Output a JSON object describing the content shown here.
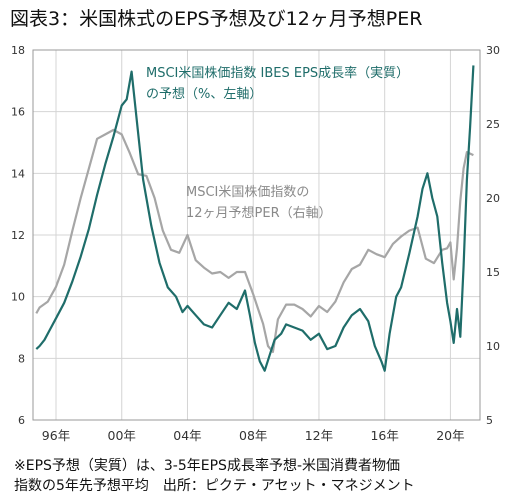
{
  "title": "図表3：米国株式のEPS予想及び12ヶ月予想PER",
  "footnote": {
    "line1": "※EPS予想（実質）は、3-5年EPS成長率予想-米国消費者物価",
    "line2": "指数の5年先予想平均　出所：ピクテ・アセット・マネジメント"
  },
  "colors": {
    "eps_series": "#1f6d6a",
    "per_series": "#a6a6a6",
    "grid": "#d4d4d4",
    "frame": "#9a9a9a"
  },
  "chart_data": {
    "type": "line",
    "title": "",
    "xlabel": "",
    "ylabel": "",
    "ylim": [
      6,
      18
    ],
    "y2lim": [
      5,
      30
    ],
    "yticks": [
      6,
      8,
      10,
      12,
      14,
      16,
      18
    ],
    "y2ticks": [
      5,
      10,
      15,
      20,
      25,
      30
    ],
    "xlim": [
      1994.6,
      2021.8
    ],
    "xticks": [
      1996,
      2000,
      2004,
      2008,
      2012,
      2016,
      2020
    ],
    "xtick_labels": [
      "96年",
      "00年",
      "04年",
      "08年",
      "12年",
      "16年",
      "20年"
    ],
    "grid": true,
    "annotations": [
      {
        "series": "eps",
        "lines": [
          "MSCI米国株価指数 IBES EPS成長率（実質）",
          "の予想（%、左軸）"
        ]
      },
      {
        "series": "per",
        "lines": [
          "MSCI米国株価指数の",
          "12ヶ月予想PER（右軸）"
        ]
      }
    ],
    "series": [
      {
        "id": "eps",
        "axis": "left",
        "x": [
          1994.8,
          1995.0,
          1995.3,
          1995.6,
          1996.0,
          1996.5,
          1997.0,
          1997.5,
          1998.0,
          1998.5,
          1999.0,
          1999.5,
          2000.0,
          2000.3,
          2000.6,
          2000.9,
          2001.3,
          2001.8,
          2002.3,
          2002.8,
          2003.3,
          2003.7,
          2004.0,
          2004.5,
          2005.0,
          2005.5,
          2006.0,
          2006.5,
          2007.0,
          2007.5,
          2007.8,
          2008.1,
          2008.4,
          2008.7,
          2009.0,
          2009.3,
          2009.7,
          2010.0,
          2010.5,
          2011.0,
          2011.5,
          2012.0,
          2012.5,
          2013.0,
          2013.5,
          2014.0,
          2014.5,
          2015.0,
          2015.4,
          2015.8,
          2016.0,
          2016.3,
          2016.7,
          2017.0,
          2017.5,
          2018.0,
          2018.3,
          2018.6,
          2018.9,
          2019.2,
          2019.5,
          2019.8,
          2020.0,
          2020.2,
          2020.4,
          2020.6,
          2020.8,
          2021.0,
          2021.2,
          2021.4
        ],
        "y": [
          8.3,
          8.4,
          8.6,
          8.9,
          9.3,
          9.8,
          10.5,
          11.3,
          12.2,
          13.3,
          14.3,
          15.2,
          16.2,
          16.4,
          17.3,
          15.8,
          13.8,
          12.3,
          11.1,
          10.3,
          10.0,
          9.5,
          9.7,
          9.4,
          9.1,
          9.0,
          9.4,
          9.8,
          9.6,
          10.2,
          9.4,
          8.5,
          7.9,
          7.6,
          8.1,
          8.6,
          8.8,
          9.1,
          9.0,
          8.9,
          8.6,
          8.8,
          8.3,
          8.4,
          9.0,
          9.4,
          9.6,
          9.2,
          8.4,
          7.9,
          7.6,
          8.8,
          10.0,
          10.3,
          11.4,
          12.6,
          13.5,
          14.0,
          13.2,
          12.6,
          11.1,
          9.8,
          9.2,
          8.5,
          9.6,
          8.7,
          11.0,
          13.8,
          15.5,
          17.5
        ]
      },
      {
        "id": "per",
        "axis": "right",
        "x": [
          1994.8,
          1995.0,
          1995.5,
          1996.0,
          1996.5,
          1997.0,
          1997.5,
          1998.0,
          1998.5,
          1999.0,
          1999.5,
          2000.0,
          2000.5,
          2001.0,
          2001.5,
          2002.0,
          2002.5,
          2003.0,
          2003.5,
          2004.0,
          2004.5,
          2005.0,
          2005.5,
          2006.0,
          2006.5,
          2007.0,
          2007.5,
          2008.0,
          2008.3,
          2008.6,
          2008.9,
          2009.2,
          2009.5,
          2010.0,
          2010.5,
          2011.0,
          2011.5,
          2012.0,
          2012.5,
          2013.0,
          2013.5,
          2014.0,
          2014.5,
          2015.0,
          2015.5,
          2016.0,
          2016.5,
          2017.0,
          2017.5,
          2018.0,
          2018.5,
          2019.0,
          2019.5,
          2019.8,
          2020.0,
          2020.2,
          2020.4,
          2020.6,
          2020.8,
          2021.0,
          2021.4
        ],
        "y": [
          12.2,
          12.6,
          13.0,
          14.0,
          15.5,
          17.8,
          20.0,
          22.0,
          24.0,
          24.3,
          24.6,
          24.3,
          23.0,
          21.6,
          21.5,
          20.0,
          17.8,
          16.5,
          16.3,
          17.5,
          15.8,
          15.3,
          14.9,
          15.0,
          14.6,
          15.0,
          15.0,
          13.5,
          12.5,
          11.5,
          10.0,
          9.6,
          11.8,
          12.8,
          12.8,
          12.5,
          12.0,
          12.7,
          12.3,
          13.0,
          14.3,
          15.2,
          15.5,
          16.5,
          16.2,
          16.0,
          16.9,
          17.4,
          17.8,
          18.0,
          15.9,
          15.6,
          16.5,
          16.6,
          17.0,
          14.5,
          16.6,
          19.8,
          22.0,
          23.1,
          22.9
        ]
      }
    ]
  }
}
